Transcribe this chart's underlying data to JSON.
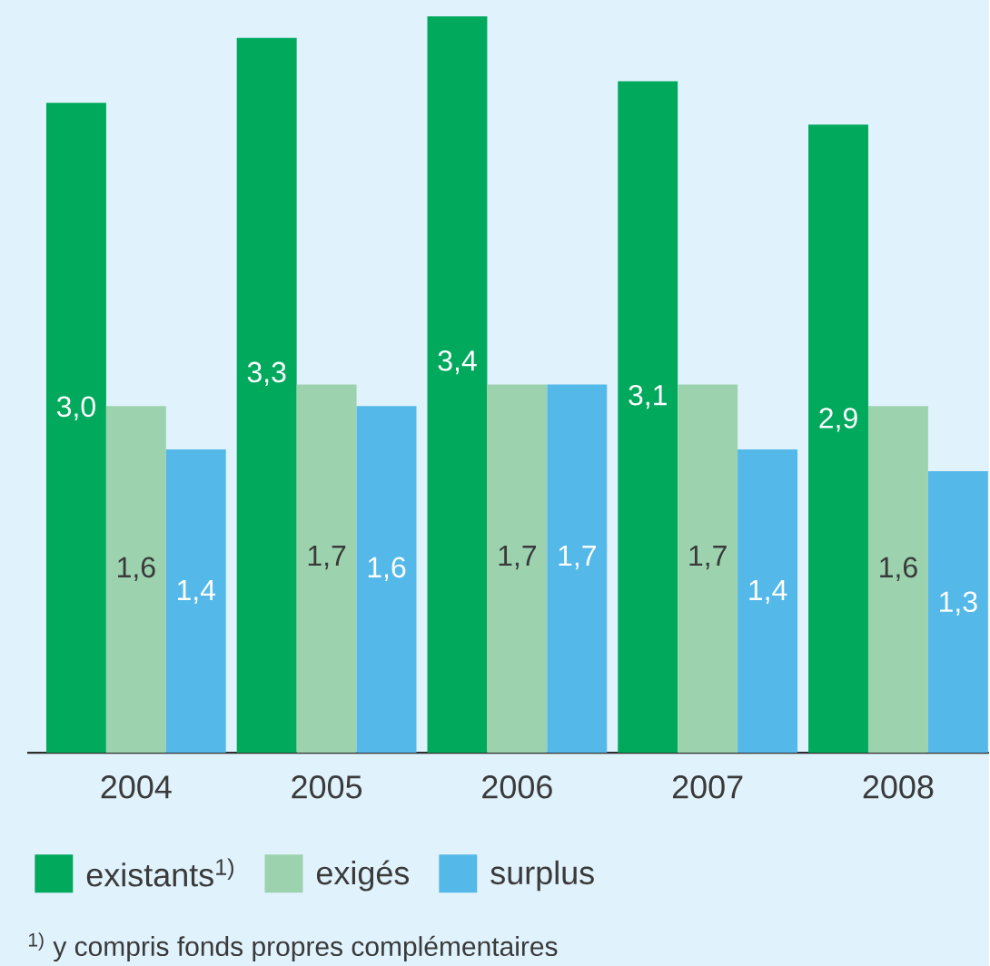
{
  "chart_data": {
    "type": "bar",
    "categories": [
      "2004",
      "2005",
      "2006",
      "2007",
      "2008"
    ],
    "series": [
      {
        "name": "existants$^{1)}$",
        "color": "#00a95c",
        "values": [
          3.0,
          3.3,
          3.4,
          3.1,
          2.9
        ],
        "value_labels": [
          "3,0",
          "3,3",
          "3,4",
          "3,1",
          "2,9"
        ]
      },
      {
        "name": "exigés",
        "color": "#9cd3ae",
        "values": [
          1.6,
          1.7,
          1.7,
          1.7,
          1.6
        ],
        "value_labels": [
          "1,6",
          "1,7",
          "1,7",
          "1,7",
          "1,6"
        ]
      },
      {
        "name": "surplus",
        "color": "#54b9e9",
        "values": [
          1.4,
          1.6,
          1.7,
          1.4,
          1.3
        ],
        "value_labels": [
          "1,4",
          "1,6",
          "1,7",
          "1,4",
          "1,3"
        ]
      }
    ],
    "ylim": [
      0,
      3.45
    ],
    "legend": "bottom",
    "annotations": [
      "$^{1)}$ y compris fonds propres complémentaires"
    ]
  }
}
